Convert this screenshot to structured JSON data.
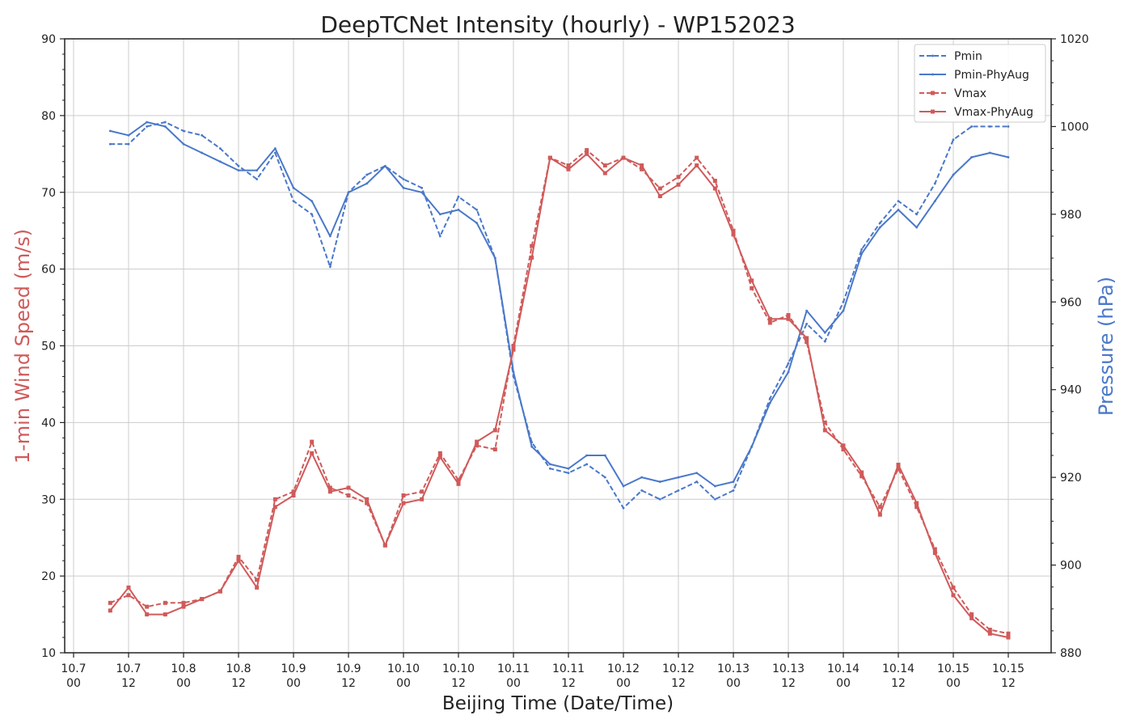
{
  "chart_data": {
    "type": "line",
    "title": "DeepTCNet Intensity (hourly) - WP152023",
    "xlabel": "Beijing Time (Date/Time)",
    "ylabel_left": "1-min Wind Speed (m/s)",
    "ylabel_right": "Pressure (hPa)",
    "ylim_left": [
      10,
      90
    ],
    "ylim_right": [
      880,
      1020
    ],
    "left_ticks": [
      10,
      20,
      30,
      40,
      50,
      60,
      70,
      80,
      90
    ],
    "right_ticks": [
      880,
      900,
      920,
      940,
      960,
      980,
      1000,
      1020
    ],
    "x_ticks": [
      {
        "day": "10.7",
        "hour": "00"
      },
      {
        "day": "10.7",
        "hour": "12"
      },
      {
        "day": "10.8",
        "hour": "00"
      },
      {
        "day": "10.8",
        "hour": "12"
      },
      {
        "day": "10.9",
        "hour": "00"
      },
      {
        "day": "10.9",
        "hour": "12"
      },
      {
        "day": "10.10",
        "hour": "00"
      },
      {
        "day": "10.10",
        "hour": "12"
      },
      {
        "day": "10.11",
        "hour": "00"
      },
      {
        "day": "10.11",
        "hour": "12"
      },
      {
        "day": "10.12",
        "hour": "00"
      },
      {
        "day": "10.12",
        "hour": "12"
      },
      {
        "day": "10.13",
        "hour": "00"
      },
      {
        "day": "10.13",
        "hour": "12"
      },
      {
        "day": "10.14",
        "hour": "00"
      },
      {
        "day": "10.14",
        "hour": "12"
      },
      {
        "day": "10.15",
        "hour": "00"
      },
      {
        "day": "10.15",
        "hour": "12"
      }
    ],
    "grid": true,
    "legend_position": "top-right",
    "colors": {
      "wind": "#d05a5a",
      "pressure": "#4a78c9",
      "text": "#222222",
      "grid": "#cccccc"
    },
    "series": [
      {
        "name": "Pmin",
        "axis": "right",
        "style": "dashed",
        "x": [
          "10.7 08",
          "10.7 12",
          "10.7 16",
          "10.7 20",
          "10.8 00",
          "10.8 04",
          "10.8 08",
          "10.8 12",
          "10.8 16",
          "10.8 20",
          "10.9 00",
          "10.9 04",
          "10.9 08",
          "10.9 12",
          "10.9 16",
          "10.9 20",
          "10.10 00",
          "10.10 04",
          "10.10 08",
          "10.10 12",
          "10.10 16",
          "10.10 20",
          "10.11 00",
          "10.11 04",
          "10.11 08",
          "10.11 12",
          "10.11 16",
          "10.11 20",
          "10.12 00",
          "10.12 04",
          "10.12 08",
          "10.12 12",
          "10.12 16",
          "10.12 20",
          "10.13 00",
          "10.13 04",
          "10.13 08",
          "10.13 12",
          "10.13 16",
          "10.13 20",
          "10.14 00",
          "10.14 04",
          "10.14 08",
          "10.14 12",
          "10.14 16",
          "10.14 20",
          "10.15 00",
          "10.15 04",
          "10.15 08",
          "10.15 12"
        ],
        "values": [
          996,
          996,
          1000,
          1001,
          999,
          998,
          995,
          991,
          988,
          994,
          983,
          980,
          968,
          985,
          989,
          991,
          988,
          986,
          975,
          984,
          981,
          970,
          943,
          928,
          922,
          921,
          923,
          920,
          913,
          917,
          915,
          917,
          919,
          915,
          917,
          927,
          938,
          946,
          955,
          951,
          960,
          972,
          978,
          983,
          980,
          987,
          997,
          1000,
          1000,
          1000
        ]
      },
      {
        "name": "Pmin-PhyAug",
        "axis": "right",
        "style": "solid",
        "x": [
          "10.7 08",
          "10.7 12",
          "10.7 16",
          "10.7 20",
          "10.8 00",
          "10.8 04",
          "10.8 08",
          "10.8 12",
          "10.8 16",
          "10.8 20",
          "10.9 00",
          "10.9 04",
          "10.9 08",
          "10.9 12",
          "10.9 16",
          "10.9 20",
          "10.10 00",
          "10.10 04",
          "10.10 08",
          "10.10 12",
          "10.10 16",
          "10.10 20",
          "10.11 00",
          "10.11 04",
          "10.11 08",
          "10.11 12",
          "10.11 16",
          "10.11 20",
          "10.12 00",
          "10.12 04",
          "10.12 08",
          "10.12 12",
          "10.12 16",
          "10.12 20",
          "10.13 00",
          "10.13 04",
          "10.13 08",
          "10.13 12",
          "10.13 16",
          "10.13 20",
          "10.14 00",
          "10.14 04",
          "10.14 08",
          "10.14 12",
          "10.14 16",
          "10.14 20",
          "10.15 00",
          "10.15 04",
          "10.15 08",
          "10.15 12"
        ],
        "values": [
          999,
          998,
          1001,
          1000,
          996,
          994,
          992,
          990,
          990,
          995,
          986,
          983,
          975,
          985,
          987,
          991,
          986,
          985,
          980,
          981,
          978,
          970,
          944,
          927,
          923,
          922,
          925,
          925,
          918,
          920,
          919,
          920,
          921,
          918,
          919,
          927,
          937,
          944,
          958,
          953,
          958,
          971,
          977,
          981,
          977,
          983,
          989,
          993,
          994,
          993
        ]
      },
      {
        "name": "Vmax",
        "axis": "left",
        "style": "dashed",
        "x": [
          "10.7 08",
          "10.7 12",
          "10.7 16",
          "10.7 20",
          "10.8 00",
          "10.8 04",
          "10.8 08",
          "10.8 12",
          "10.8 16",
          "10.8 20",
          "10.9 00",
          "10.9 04",
          "10.9 08",
          "10.9 12",
          "10.9 16",
          "10.9 20",
          "10.10 00",
          "10.10 04",
          "10.10 08",
          "10.10 12",
          "10.10 16",
          "10.10 20",
          "10.11 00",
          "10.11 04",
          "10.11 08",
          "10.11 12",
          "10.11 16",
          "10.11 20",
          "10.12 00",
          "10.12 04",
          "10.12 08",
          "10.12 12",
          "10.12 16",
          "10.12 20",
          "10.13 00",
          "10.13 04",
          "10.13 08",
          "10.13 12",
          "10.13 16",
          "10.13 20",
          "10.14 00",
          "10.14 04",
          "10.14 08",
          "10.14 12",
          "10.14 16",
          "10.14 20",
          "10.15 00",
          "10.15 04",
          "10.15 08",
          "10.15 12"
        ],
        "values": [
          16.5,
          17.5,
          16.0,
          16.5,
          16.5,
          17.0,
          18.0,
          22.5,
          19.5,
          30.0,
          31.0,
          37.5,
          31.5,
          30.5,
          29.5,
          24.0,
          30.5,
          31.0,
          36.0,
          32.5,
          37.0,
          36.5,
          50.0,
          63.0,
          74.5,
          73.5,
          75.5,
          73.5,
          74.5,
          73.0,
          70.5,
          72.0,
          74.5,
          71.5,
          65.0,
          57.5,
          53.0,
          54.0,
          50.5,
          40.0,
          36.5,
          33.0,
          29.0,
          34.0,
          29.0,
          23.5,
          18.5,
          15.0,
          13.0,
          12.5
        ]
      },
      {
        "name": "Vmax-PhyAug",
        "axis": "left",
        "style": "solid",
        "x": [
          "10.7 08",
          "10.7 12",
          "10.7 16",
          "10.7 20",
          "10.8 00",
          "10.8 04",
          "10.8 08",
          "10.8 12",
          "10.8 16",
          "10.8 20",
          "10.9 00",
          "10.9 04",
          "10.9 08",
          "10.9 12",
          "10.9 16",
          "10.9 20",
          "10.10 00",
          "10.10 04",
          "10.10 08",
          "10.10 12",
          "10.10 16",
          "10.10 20",
          "10.11 00",
          "10.11 04",
          "10.11 08",
          "10.11 12",
          "10.11 16",
          "10.11 20",
          "10.12 00",
          "10.12 04",
          "10.12 08",
          "10.12 12",
          "10.12 16",
          "10.12 20",
          "10.13 00",
          "10.13 04",
          "10.13 08",
          "10.13 12",
          "10.13 16",
          "10.13 20",
          "10.14 00",
          "10.14 04",
          "10.14 08",
          "10.14 12",
          "10.14 16",
          "10.14 20",
          "10.15 00",
          "10.15 04",
          "10.15 08",
          "10.15 12"
        ],
        "values": [
          15.5,
          18.5,
          15.0,
          15.0,
          16.0,
          17.0,
          18.0,
          22.0,
          18.5,
          29.0,
          30.5,
          36.0,
          31.0,
          31.5,
          30.0,
          24.0,
          29.5,
          30.0,
          35.5,
          32.0,
          37.5,
          39.0,
          49.5,
          61.5,
          74.5,
          73.0,
          75.0,
          72.5,
          74.5,
          73.5,
          69.5,
          71.0,
          73.5,
          70.5,
          64.5,
          58.5,
          53.5,
          53.5,
          51.0,
          39.0,
          37.0,
          33.5,
          28.0,
          34.5,
          29.5,
          23.0,
          17.5,
          14.5,
          12.5,
          12.0
        ]
      }
    ]
  }
}
